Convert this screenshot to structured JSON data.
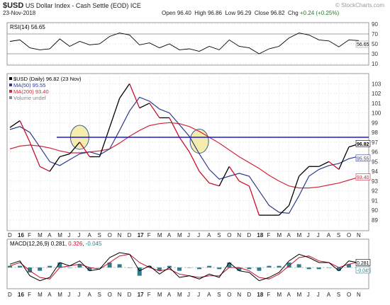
{
  "header": {
    "symbol": "$USD",
    "name": "US Dollar Index - Cash Settle (EOD)",
    "exchange": "ICE",
    "watermark": "© StockCharts.com",
    "date": "23-Nov-2018",
    "open_label": "Open",
    "open": "96.40",
    "high_label": "High",
    "high": "96.86",
    "low_label": "Low",
    "low": "96.29",
    "close_label": "Close",
    "close": "96.82",
    "chg_label": "Chg",
    "chg": "+0.24 (+0.25%)",
    "chg_color": "#2a7a2a"
  },
  "colors": {
    "price": "#000000",
    "price_down": "#c8102e",
    "ma50": "#2e3a8c",
    "ma200": "#d0283c",
    "hline": "#1a1ad0",
    "circle_fill": "#f2eaa0",
    "circle_stroke": "#3a5a9a",
    "macd_hist": "#2e7e8e",
    "grid": "#d8d8d8"
  },
  "chart_data": [
    {
      "type": "line",
      "panel": "RSI",
      "legend": "RSI(14) 56.65",
      "rsi_value": 56.65,
      "ylim": [
        10,
        90
      ],
      "y_ticks": [
        90,
        70,
        50,
        30,
        10
      ],
      "current_label": "56.65",
      "x": [
        "2015-12",
        "2016-01",
        "2016-02",
        "2016-03",
        "2016-04",
        "2016-05",
        "2016-06",
        "2016-07",
        "2016-08",
        "2016-09",
        "2016-10",
        "2016-11",
        "2016-12",
        "2017-01",
        "2017-02",
        "2017-03",
        "2017-04",
        "2017-05",
        "2017-06",
        "2017-07",
        "2017-08",
        "2017-09",
        "2017-10",
        "2017-11",
        "2017-12",
        "2018-01",
        "2018-02",
        "2018-03",
        "2018-04",
        "2018-05",
        "2018-06",
        "2018-07",
        "2018-08",
        "2018-09",
        "2018-10",
        "2018-11"
      ],
      "values": [
        55,
        58,
        42,
        38,
        40,
        60,
        45,
        55,
        48,
        50,
        65,
        72,
        68,
        48,
        52,
        42,
        50,
        38,
        40,
        35,
        45,
        38,
        58,
        45,
        42,
        30,
        40,
        45,
        62,
        72,
        68,
        58,
        56,
        44,
        58,
        56.65
      ]
    },
    {
      "type": "line",
      "panel": "Price",
      "legend": [
        {
          "name": "$USD (Daily) 96.82 (23 Nov)",
          "color": "#000000"
        },
        {
          "name": "MA(50) 95.55",
          "color": "#2e3a8c"
        },
        {
          "name": "MA(200) 93.40",
          "color": "#d0283c"
        },
        {
          "name": "Volume undef",
          "color": "#888888"
        }
      ],
      "ylim": [
        88.2,
        103.6
      ],
      "y_ticks": [
        103,
        102,
        101,
        100,
        99,
        98,
        97,
        96,
        95,
        94,
        93,
        92,
        91,
        90,
        89
      ],
      "tag_labels": [
        "96.82",
        "95.55",
        "93.40"
      ],
      "horizontal_line": 97.5,
      "circles": [
        {
          "x": "2016-07",
          "y": 97.5
        },
        {
          "x": "2017-07",
          "y": 97.1
        }
      ],
      "x": [
        "2015-12",
        "2016-01",
        "2016-02",
        "2016-03",
        "2016-04",
        "2016-05",
        "2016-06",
        "2016-07",
        "2016-08",
        "2016-09",
        "2016-10",
        "2016-11",
        "2016-12",
        "2017-01",
        "2017-02",
        "2017-03",
        "2017-04",
        "2017-05",
        "2017-06",
        "2017-07",
        "2017-08",
        "2017-09",
        "2017-10",
        "2017-11",
        "2017-12",
        "2018-01",
        "2018-02",
        "2018-03",
        "2018-04",
        "2018-05",
        "2018-06",
        "2018-07",
        "2018-08",
        "2018-09",
        "2018-10",
        "2018-11"
      ],
      "series": [
        {
          "name": "$USD",
          "values": [
            98.5,
            99.2,
            97.0,
            94.5,
            94.0,
            95.5,
            95.8,
            97.0,
            95.5,
            95.5,
            98.5,
            101.5,
            103.0,
            100.5,
            101.0,
            99.5,
            99.5,
            97.5,
            96.0,
            94.0,
            92.8,
            92.5,
            94.5,
            93.0,
            92.5,
            89.5,
            89.5,
            89.5,
            90.5,
            93.5,
            94.5,
            94.5,
            95.0,
            94.2,
            96.5,
            96.82
          ]
        },
        {
          "name": "MA(50)",
          "values": [
            98.3,
            98.6,
            98.0,
            96.5,
            95.0,
            94.6,
            95.2,
            95.8,
            96.0,
            95.7,
            96.3,
            98.2,
            100.2,
            101.6,
            101.2,
            100.4,
            100.0,
            98.8,
            97.6,
            95.8,
            94.2,
            93.2,
            93.5,
            93.8,
            93.5,
            92.0,
            90.5,
            89.8,
            89.7,
            91.5,
            93.5,
            94.2,
            94.6,
            94.8,
            95.3,
            95.55
          ]
        },
        {
          "name": "MA(200)",
          "values": [
            96.3,
            96.6,
            96.7,
            96.6,
            96.4,
            96.1,
            95.9,
            95.9,
            96.0,
            96.1,
            96.3,
            96.9,
            97.6,
            98.2,
            98.7,
            98.9,
            99.0,
            98.9,
            98.6,
            98.1,
            97.5,
            96.9,
            96.2,
            95.5,
            94.9,
            94.3,
            93.6,
            93.0,
            92.5,
            92.3,
            92.3,
            92.4,
            92.6,
            92.8,
            93.1,
            93.4
          ]
        }
      ]
    },
    {
      "type": "line",
      "panel": "MACD",
      "legend": "MACD(12,26,9) 0.281, 0.326, -0.045",
      "macd_value": "0.281",
      "signal_value": "0.326",
      "hist_value": "-0.045",
      "tag_labels": [
        "0.281",
        "-0.045"
      ],
      "ylim": [
        -1.2,
        1.2
      ],
      "x": [
        "2015-12",
        "2016-01",
        "2016-02",
        "2016-03",
        "2016-04",
        "2016-05",
        "2016-06",
        "2016-07",
        "2016-08",
        "2016-09",
        "2016-10",
        "2016-11",
        "2016-12",
        "2017-01",
        "2017-02",
        "2017-03",
        "2017-04",
        "2017-05",
        "2017-06",
        "2017-07",
        "2017-08",
        "2017-09",
        "2017-10",
        "2017-11",
        "2017-12",
        "2018-01",
        "2018-02",
        "2018-03",
        "2018-04",
        "2018-05",
        "2018-06",
        "2018-07",
        "2018-08",
        "2018-09",
        "2018-10",
        "2018-11"
      ],
      "series": [
        {
          "name": "MACD",
          "values": [
            0.2,
            0.4,
            -0.5,
            -0.8,
            -0.6,
            0.3,
            0.1,
            0.4,
            -0.2,
            -0.1,
            0.6,
            0.9,
            0.8,
            -0.2,
            0.1,
            -0.4,
            0.0,
            -0.6,
            -0.5,
            -0.7,
            -0.4,
            -0.6,
            0.3,
            -0.2,
            -0.3,
            -0.8,
            -0.6,
            -0.3,
            0.4,
            0.8,
            0.6,
            0.3,
            0.3,
            -0.2,
            0.4,
            0.281
          ]
        },
        {
          "name": "Signal",
          "values": [
            0.1,
            0.3,
            -0.2,
            -0.6,
            -0.7,
            0.0,
            0.1,
            0.2,
            0.0,
            -0.1,
            0.3,
            0.7,
            0.8,
            0.3,
            0.0,
            -0.2,
            -0.1,
            -0.4,
            -0.5,
            -0.6,
            -0.5,
            -0.5,
            0.0,
            0.0,
            -0.2,
            -0.6,
            -0.7,
            -0.4,
            0.1,
            0.6,
            0.7,
            0.4,
            0.3,
            0.0,
            0.2,
            0.326
          ]
        }
      ]
    }
  ],
  "x_axis": {
    "labels": [
      "D",
      "16",
      "F",
      "M",
      "A",
      "M",
      "J",
      "J",
      "A",
      "S",
      "O",
      "N",
      "D",
      "17",
      "F",
      "M",
      "A",
      "M",
      "J",
      "J",
      "A",
      "S",
      "O",
      "N",
      "D",
      "18",
      "F",
      "M",
      "A",
      "M",
      "J",
      "J",
      "A",
      "S",
      "O",
      "N"
    ],
    "bold_labels": [
      "16",
      "17",
      "18"
    ]
  }
}
